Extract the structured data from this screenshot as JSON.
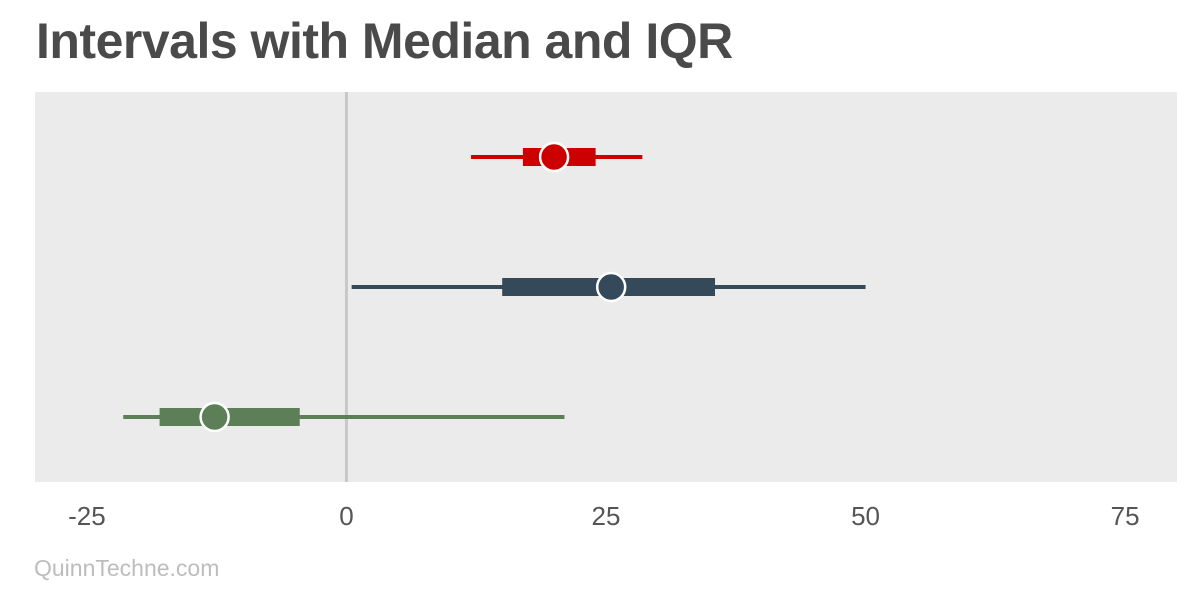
{
  "title": "Intervals with Median and IQR",
  "footer": "QuinnTechne.com",
  "chart_data": {
    "type": "interval",
    "title": "Intervals with Median and IQR",
    "xlabel": "",
    "ylabel": "",
    "xlim": [
      -30,
      80
    ],
    "xticks": [
      -25,
      0,
      25,
      50,
      75
    ],
    "reference_line": 0,
    "grid": false,
    "series": [
      {
        "color": "#cc0000",
        "low": 12,
        "q1": 17,
        "median": 20,
        "q3": 24,
        "high": 28.5
      },
      {
        "color": "#34495a",
        "low": 0.5,
        "q1": 15,
        "median": 25.5,
        "q3": 35.5,
        "high": 50
      },
      {
        "color": "#5d7f58",
        "low": -21.5,
        "q1": -18,
        "median": -12.7,
        "q3": -4.5,
        "high": 21
      }
    ]
  }
}
